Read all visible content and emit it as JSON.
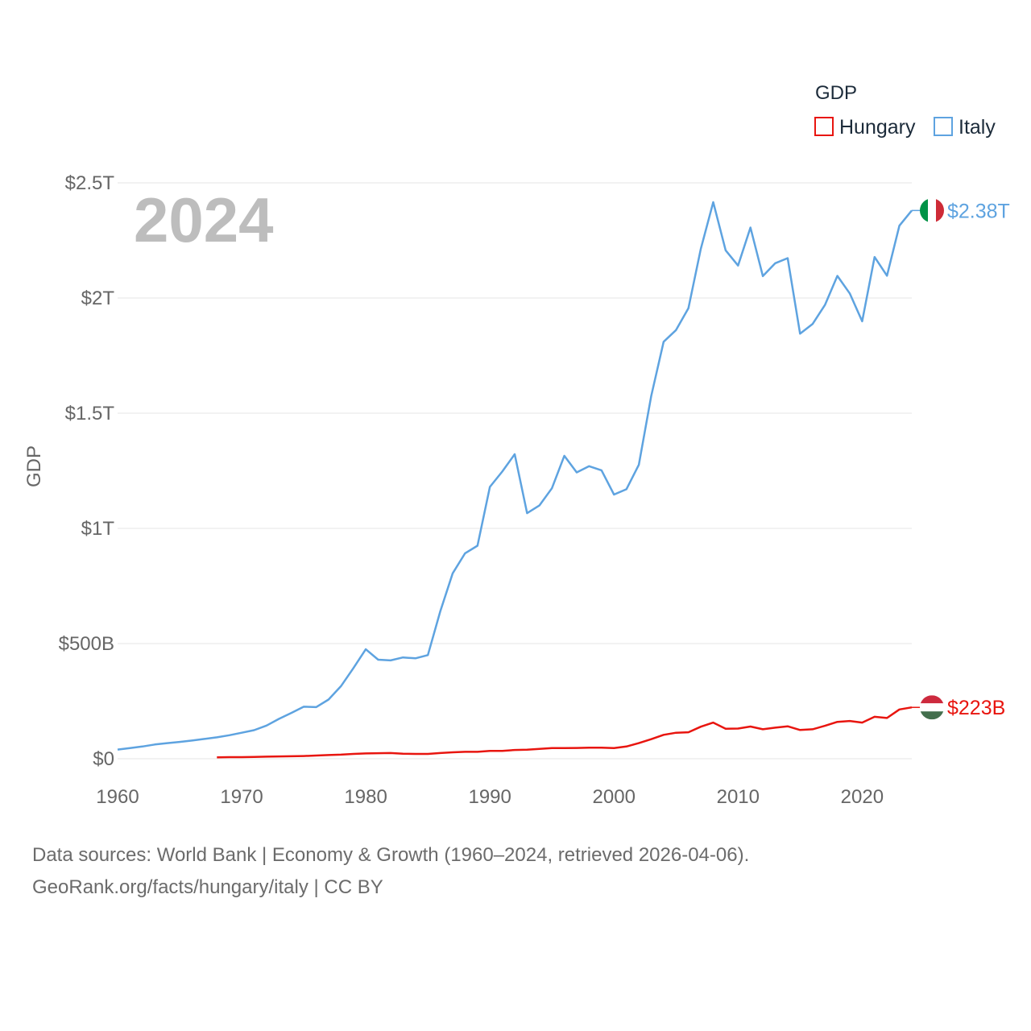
{
  "chart_data": {
    "type": "line",
    "title": "GDP",
    "ylabel": "GDP",
    "xlabel": "",
    "year_display": "2024",
    "xlim": [
      1960,
      2024
    ],
    "ylim": [
      0,
      2500
    ],
    "y_unit": "billions USD",
    "x_ticks": [
      "1960",
      "1970",
      "1980",
      "1990",
      "2000",
      "2010",
      "2020"
    ],
    "y_ticks": [
      {
        "value": 0,
        "label": "$0"
      },
      {
        "value": 500,
        "label": "$500B"
      },
      {
        "value": 1000,
        "label": "$1T"
      },
      {
        "value": 1500,
        "label": "$1.5T"
      },
      {
        "value": 2000,
        "label": "$2T"
      },
      {
        "value": 2500,
        "label": "$2.5T"
      }
    ],
    "legend": {
      "title": "GDP",
      "position": "top-right"
    },
    "series": [
      {
        "name": "Hungary",
        "color": "#e8150f",
        "end_label": "$223B",
        "flag": "hungary-flag",
        "x": [
          1968,
          1969,
          1970,
          1971,
          1972,
          1973,
          1974,
          1975,
          1976,
          1977,
          1978,
          1979,
          1980,
          1981,
          1982,
          1983,
          1984,
          1985,
          1986,
          1987,
          1988,
          1989,
          1990,
          1991,
          1992,
          1993,
          1994,
          1995,
          1996,
          1997,
          1998,
          1999,
          2000,
          2001,
          2002,
          2003,
          2004,
          2005,
          2006,
          2007,
          2008,
          2009,
          2010,
          2011,
          2012,
          2013,
          2014,
          2015,
          2016,
          2017,
          2018,
          2019,
          2020,
          2021,
          2022,
          2023,
          2024
        ],
        "values": [
          6,
          7,
          7,
          8,
          9,
          10,
          11,
          12,
          14,
          16,
          18,
          21,
          23,
          24,
          25,
          22,
          21,
          21,
          25,
          28,
          30,
          30,
          34,
          34,
          38,
          39,
          43,
          46,
          46,
          47,
          48,
          48,
          46,
          53,
          68,
          85,
          104,
          113,
          115,
          139,
          157,
          130,
          131,
          140,
          128,
          135,
          141,
          125,
          128,
          143,
          160,
          164,
          157,
          182,
          177,
          214,
          223
        ]
      },
      {
        "name": "Italy",
        "color": "#5ea3e0",
        "end_label": "$2.38T",
        "flag": "italy-flag",
        "x": [
          1960,
          1961,
          1962,
          1963,
          1964,
          1965,
          1966,
          1967,
          1968,
          1969,
          1970,
          1971,
          1972,
          1973,
          1974,
          1975,
          1976,
          1977,
          1978,
          1979,
          1980,
          1981,
          1982,
          1983,
          1984,
          1985,
          1986,
          1987,
          1988,
          1989,
          1990,
          1991,
          1992,
          1993,
          1994,
          1995,
          1996,
          1997,
          1998,
          1999,
          2000,
          2001,
          2002,
          2003,
          2004,
          2005,
          2006,
          2007,
          2008,
          2009,
          2010,
          2011,
          2012,
          2013,
          2014,
          2015,
          2016,
          2017,
          2018,
          2019,
          2020,
          2021,
          2022,
          2023,
          2024
        ],
        "values": [
          40,
          46,
          53,
          62,
          68,
          73,
          79,
          86,
          93,
          102,
          113,
          124,
          144,
          173,
          199,
          226,
          224,
          257,
          315,
          393,
          475,
          430,
          427,
          440,
          436,
          450,
          640,
          805,
          892,
          925,
          1180,
          1247,
          1322,
          1066,
          1100,
          1174,
          1315,
          1243,
          1270,
          1252,
          1147,
          1170,
          1276,
          1575,
          1810,
          1861,
          1956,
          2214,
          2416,
          2207,
          2141,
          2306,
          2095,
          2151,
          2173,
          1845,
          1887,
          1970,
          2096,
          2020,
          1899,
          2178,
          2097,
          2314,
          2380
        ]
      }
    ]
  },
  "footer": {
    "line1": "Data sources: World Bank | Economy & Growth (1960–2024, retrieved 2026-04-06).",
    "line2": "GeoRank.org/facts/hungary/italy | CC BY"
  }
}
